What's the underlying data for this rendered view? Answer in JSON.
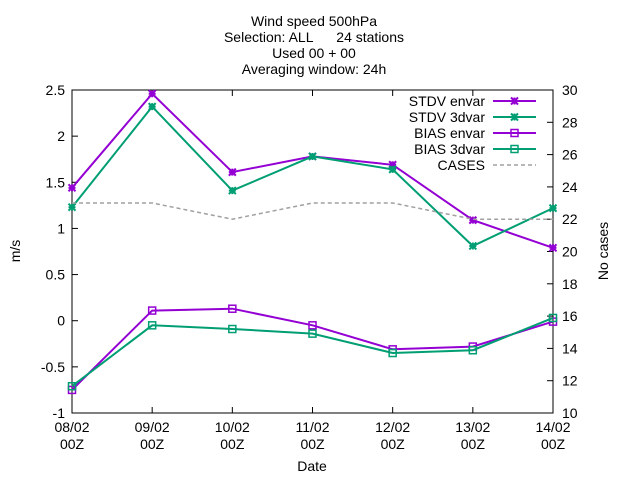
{
  "chart_data": {
    "type": "line",
    "title_lines": [
      "Wind speed 500hPa",
      "Selection: ALL      24 stations",
      "Used 00 + 00",
      "Averaging window: 24h"
    ],
    "xlabel": "Date",
    "ylabel": "m/s",
    "y2label": "No cases",
    "categories": [
      {
        "top": "08/02",
        "bottom": "00Z"
      },
      {
        "top": "09/02",
        "bottom": "00Z"
      },
      {
        "top": "10/02",
        "bottom": "00Z"
      },
      {
        "top": "11/02",
        "bottom": "00Z"
      },
      {
        "top": "12/02",
        "bottom": "00Z"
      },
      {
        "top": "13/02",
        "bottom": "00Z"
      },
      {
        "top": "14/02",
        "bottom": "00Z"
      }
    ],
    "ylim": [
      -1,
      2.5
    ],
    "yticks": [
      "-1",
      "-0.5",
      "0",
      "0.5",
      "1",
      "1.5",
      "2",
      "2.5"
    ],
    "y2lim": [
      10,
      30
    ],
    "y2ticks": [
      "10",
      "12",
      "14",
      "16",
      "18",
      "20",
      "22",
      "24",
      "26",
      "28",
      "30"
    ],
    "legend_position": "top-right",
    "grid": false,
    "series": [
      {
        "name": "STDV envar",
        "color": "#9400d3",
        "marker": "star",
        "axis": "y1",
        "dash": "none",
        "values": [
          1.44,
          2.46,
          1.61,
          1.78,
          1.69,
          1.09,
          0.79
        ]
      },
      {
        "name": "STDV 3dvar",
        "color": "#009e73",
        "marker": "star",
        "axis": "y1",
        "dash": "none",
        "values": [
          1.23,
          2.32,
          1.41,
          1.78,
          1.64,
          0.81,
          1.22
        ]
      },
      {
        "name": "BIAS envar",
        "color": "#9400d3",
        "marker": "square",
        "axis": "y1",
        "dash": "none",
        "values": [
          -0.75,
          0.11,
          0.13,
          -0.05,
          -0.31,
          -0.28,
          -0.01
        ]
      },
      {
        "name": "BIAS 3dvar",
        "color": "#009e73",
        "marker": "square",
        "axis": "y1",
        "dash": "none",
        "values": [
          -0.71,
          -0.05,
          -0.09,
          -0.14,
          -0.35,
          -0.32,
          0.03
        ]
      },
      {
        "name": "CASES",
        "color": "#a0a0a0",
        "marker": "none",
        "axis": "y2",
        "dash": "dashed",
        "values": [
          23,
          23,
          22,
          23,
          23,
          22,
          22
        ]
      }
    ]
  }
}
